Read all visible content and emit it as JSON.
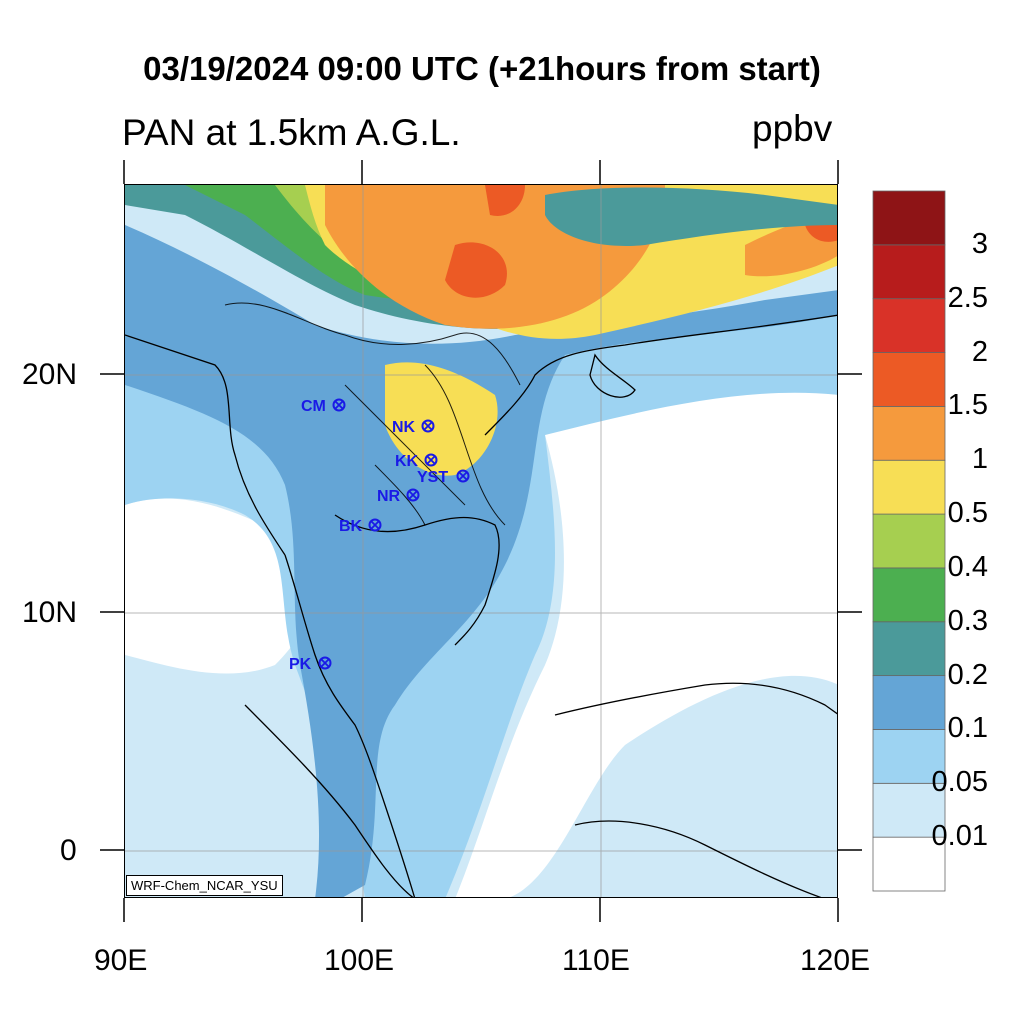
{
  "title": "03/19/2024 09:00 UTC (+21hours from start)",
  "subtitle": "PAN at 1.5km A.G.L.",
  "units": "ppbv",
  "credit": "WRF-Chem_NCAR_YSU",
  "axes": {
    "x_ticks": [
      "90E",
      "100E",
      "110E",
      "120E"
    ],
    "y_ticks": [
      "20N",
      "10N",
      "0"
    ]
  },
  "colorbar": {
    "levels": [
      "0.01",
      "0.05",
      "0.1",
      "0.2",
      "0.3",
      "0.4",
      "0.5",
      "1",
      "1.5",
      "2",
      "2.5",
      "3"
    ],
    "colors": [
      "#ffffff",
      "#cfe9f7",
      "#9dd3f2",
      "#64a5d6",
      "#4b9a9a",
      "#4caf50",
      "#a6cf50",
      "#f7de55",
      "#f59a3d",
      "#ec5a25",
      "#d93228",
      "#b71c1c",
      "#8e1416"
    ]
  },
  "stations": [
    {
      "name": "CM"
    },
    {
      "name": "NK"
    },
    {
      "name": "KK"
    },
    {
      "name": "YST"
    },
    {
      "name": "NR"
    },
    {
      "name": "BK"
    },
    {
      "name": "PK"
    }
  ],
  "stations_color": "#1a1ae6"
}
